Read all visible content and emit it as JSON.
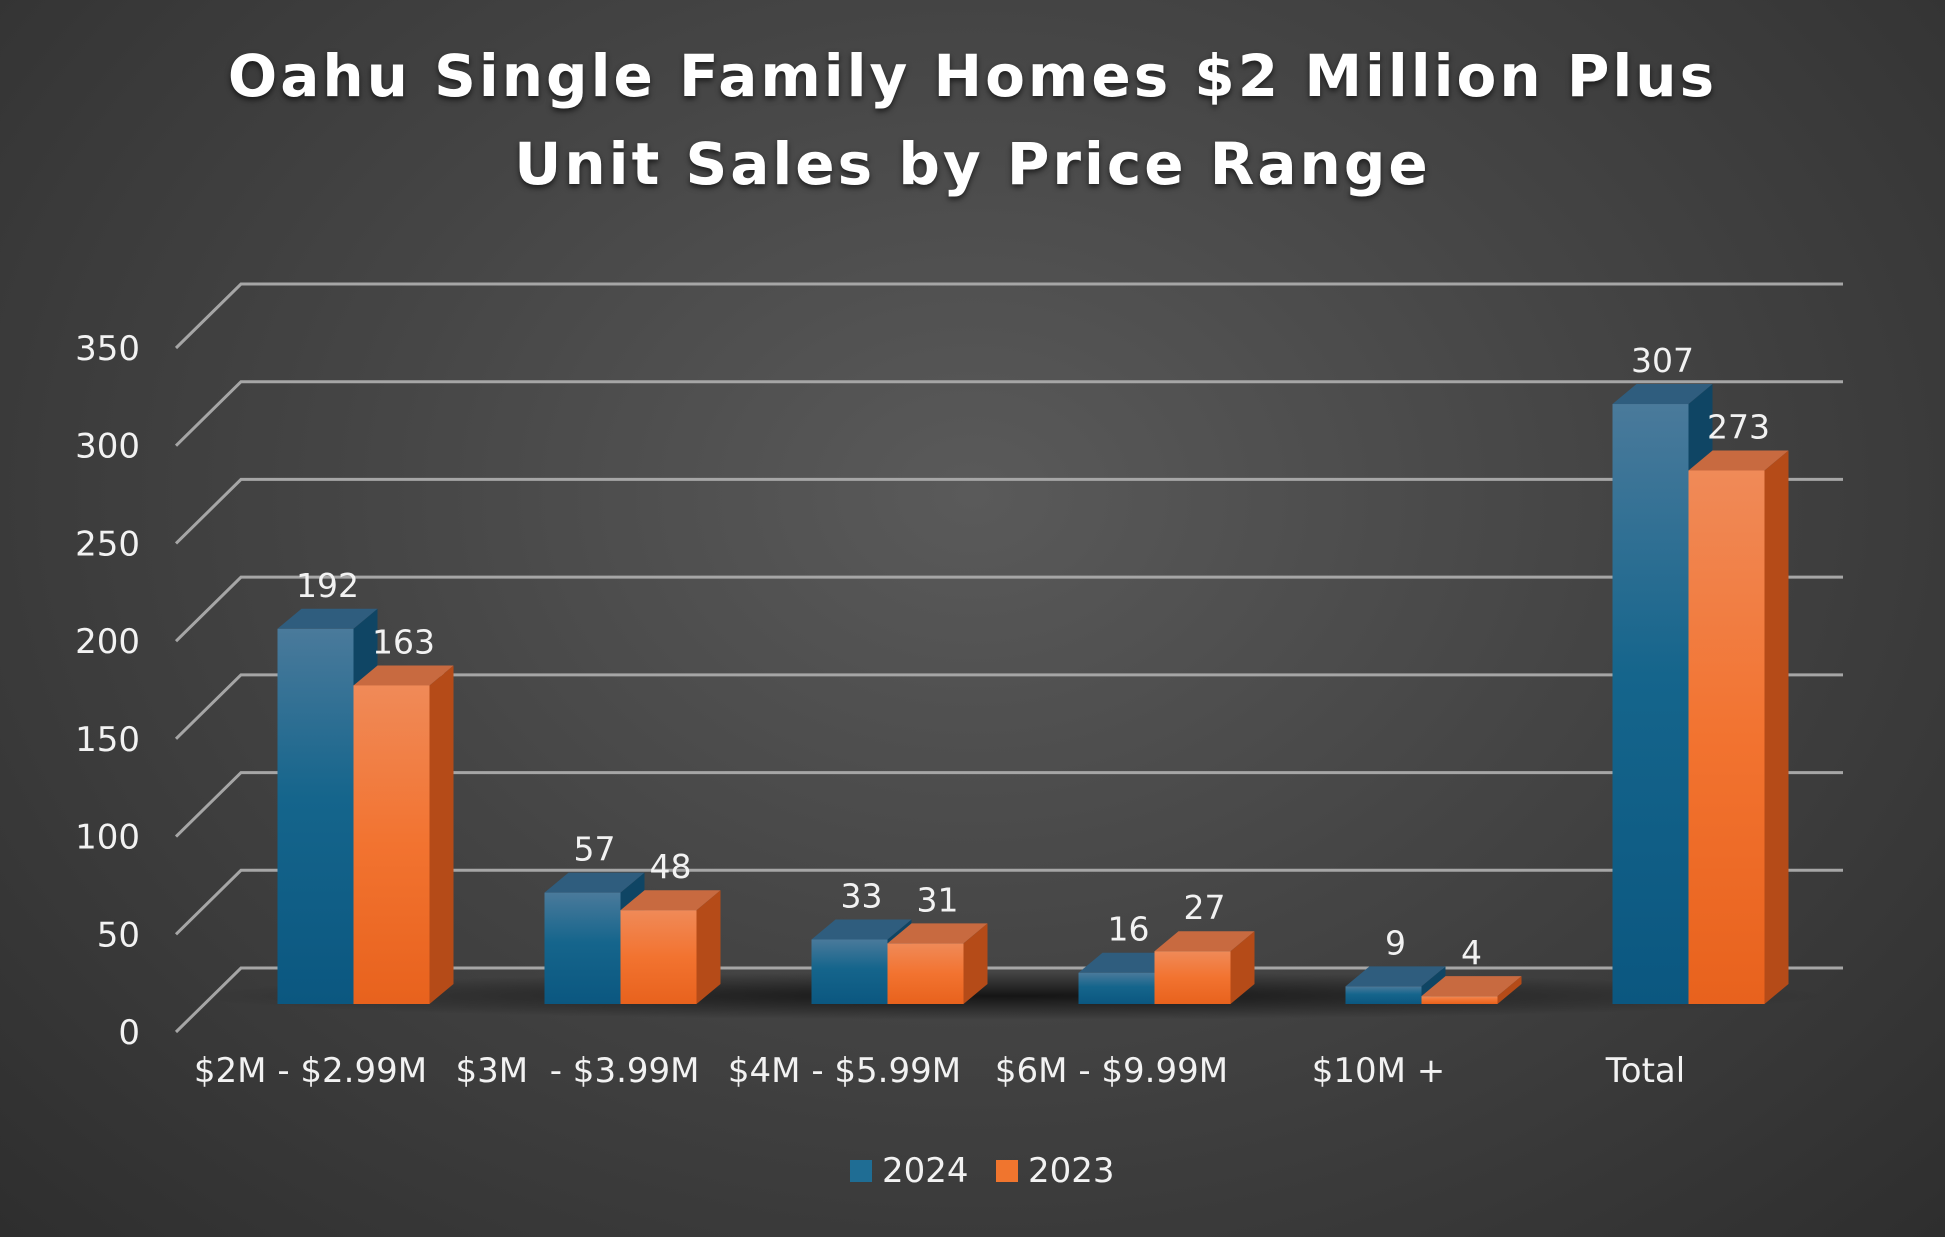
{
  "chart_data": {
    "type": "bar",
    "title": "Oahu Single Family Homes $2 Million Plus",
    "subtitle": "Unit Sales by Price Range",
    "categories": [
      "$2M - $2.99M",
      "$3M  - $3.99M",
      "$4M - $5.99M",
      "$6M - $9.99M",
      "$10M +",
      "Total"
    ],
    "series": [
      {
        "name": "2024",
        "values": [
          192,
          57,
          33,
          16,
          9,
          307
        ],
        "color": "#1f6d94"
      },
      {
        "name": "2023",
        "values": [
          163,
          48,
          31,
          27,
          4,
          273
        ],
        "color": "#f0752e"
      }
    ],
    "yticks": [
      "0",
      "50",
      "100",
      "150",
      "200",
      "250",
      "300",
      "350"
    ],
    "ylim": [
      0,
      350
    ],
    "grid": true,
    "three_d": true,
    "legend": "bottom-center"
  }
}
